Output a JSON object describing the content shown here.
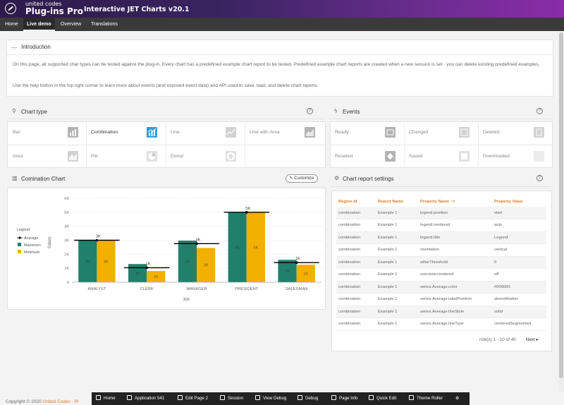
{
  "header": {
    "brand_small": "united codes",
    "brand_big": "Plug-ins Pro",
    "app_title": "Interactive JET Charts v20.1"
  },
  "nav": {
    "items": [
      "Home",
      "Live demo",
      "Overview",
      "Translations"
    ],
    "active": "Live demo"
  },
  "intro": {
    "title": "Introduction",
    "p1": "On this page, all supported char types can be tested against the plug-in. Every chart has a predefined example chart report to be tested. Predefined example chart reports are created when a new session is set - you can delete existing predefined examples.",
    "p2": "Use the help button in the top right corner to learn more about events (and exposed event data) and API used to save, load, and delete chart reports."
  },
  "chart_type": {
    "title": "Chart type",
    "help": "?",
    "tiles": [
      "Bar",
      "Combination",
      "Line",
      "Line with Area",
      "Area",
      "Pie",
      "Donut"
    ],
    "selected": "Combination"
  },
  "events": {
    "title": "Events",
    "help": "?",
    "tiles": [
      "Ready",
      "Changed",
      "Deleted",
      "Reseted",
      "Saved",
      "Downloaded"
    ]
  },
  "chart_panel": {
    "title": "Comination Chart",
    "customize": "Customize"
  },
  "chart_data": {
    "type": "bar",
    "categories": [
      "ANALYST",
      "CLERK",
      "MANAGER",
      "PRESIDENT",
      "SALESMAN"
    ],
    "series": [
      {
        "name": "Average",
        "type": "line",
        "values": [
          3000,
          1038,
          2758,
          5000,
          1400
        ],
        "labels": [
          "3K",
          "1K",
          "3K",
          "5K",
          "1K"
        ],
        "color": "#000000"
      },
      {
        "name": "Maximum",
        "type": "bar",
        "values": [
          3000,
          1300,
          2975,
          5000,
          1600
        ],
        "inner_labels": [
          "3K",
          "1K",
          "3K",
          "5K",
          "2K"
        ],
        "color": "#21806b"
      },
      {
        "name": "Minimum",
        "type": "bar",
        "values": [
          3000,
          800,
          2450,
          5000,
          1250
        ],
        "inner_labels": [
          "3K",
          "1K",
          "2K",
          "5K",
          "1K"
        ],
        "color": "#f2b100"
      }
    ],
    "xlabel": "Job",
    "ylabel": "Salary",
    "ylim": [
      0,
      6000
    ],
    "yticks": [
      "0",
      "1K",
      "2K",
      "3K",
      "4K",
      "5K",
      "6K"
    ],
    "legend_title": "Legend",
    "legend_position": "left",
    "grid": true
  },
  "settings": {
    "title": "Chart report settings",
    "help": "?",
    "columns": [
      "Region Id",
      "Report Name",
      "Property Name ↑=",
      "Property Value"
    ],
    "rows": [
      [
        "combination",
        "Example 1",
        "legend.position",
        "start"
      ],
      [
        "combination",
        "Example 1",
        "legend.rendered",
        "auto"
      ],
      [
        "combination",
        "Example 1",
        "legend.title",
        "Legend"
      ],
      [
        "combination",
        "Example 1",
        "orientation",
        "vertical"
      ],
      [
        "combination",
        "Example 1",
        "otherThreshold",
        "0"
      ],
      [
        "combination",
        "Example 1",
        "overview.rendered",
        "off"
      ],
      [
        "combination",
        "Example 1",
        "series.Average.color",
        "#000000"
      ],
      [
        "combination",
        "Example 1",
        "series.Average.labelPosition",
        "aboveMarker"
      ],
      [
        "combination",
        "Example 1",
        "series.Average.lineStyle",
        "solid"
      ],
      [
        "combination",
        "Example 1",
        "series.Average.lineType",
        "centeredSegmented"
      ]
    ],
    "pagination": "row(s) 1 - 10 of 40",
    "next": "Next"
  },
  "footer": {
    "copyright": "Copyright © 2020",
    "link": "United Codes - Pl"
  },
  "devbar": [
    "Home",
    "Application 541",
    "Edit Page 2",
    "Session",
    "View Debug",
    "Debug",
    "Page Info",
    "Quick Edit",
    "Theme Roller"
  ]
}
